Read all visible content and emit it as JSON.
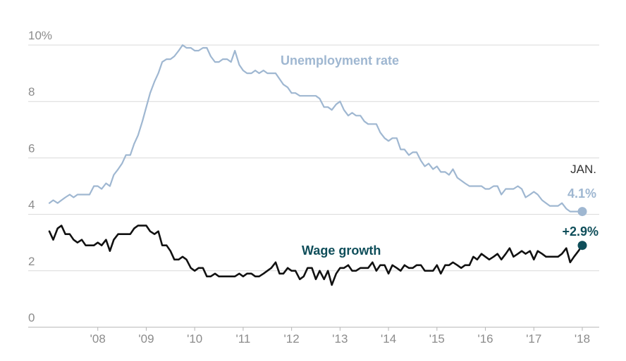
{
  "chart_data": {
    "type": "line",
    "ylim": [
      0,
      10
    ],
    "y_ticks": [
      {
        "value": 10,
        "label": "10%"
      },
      {
        "value": 8,
        "label": "8"
      },
      {
        "value": 6,
        "label": "6"
      },
      {
        "value": 4,
        "label": "4"
      },
      {
        "value": 2,
        "label": "2"
      },
      {
        "value": 0,
        "label": "0"
      }
    ],
    "x_ticks": [
      {
        "year": 2008,
        "label": "'08"
      },
      {
        "year": 2009,
        "label": "'09"
      },
      {
        "year": 2010,
        "label": "'10"
      },
      {
        "year": 2011,
        "label": "'11"
      },
      {
        "year": 2012,
        "label": "'12"
      },
      {
        "year": 2013,
        "label": "'13"
      },
      {
        "year": 2014,
        "label": "'14"
      },
      {
        "year": 2015,
        "label": "'15"
      },
      {
        "year": 2016,
        "label": "'16"
      },
      {
        "year": 2017,
        "label": "'17"
      },
      {
        "year": 2018,
        "label": "'18"
      }
    ],
    "grid": true,
    "series": [
      {
        "name": "Unemployment rate",
        "color": "#9fb7d1",
        "end_label": "4.1%",
        "points": [
          [
            2007.0,
            4.4
          ],
          [
            2007.08,
            4.5
          ],
          [
            2007.17,
            4.4
          ],
          [
            2007.25,
            4.5
          ],
          [
            2007.33,
            4.6
          ],
          [
            2007.42,
            4.7
          ],
          [
            2007.5,
            4.6
          ],
          [
            2007.58,
            4.7
          ],
          [
            2007.67,
            4.7
          ],
          [
            2007.75,
            4.7
          ],
          [
            2007.83,
            4.7
          ],
          [
            2007.92,
            5.0
          ],
          [
            2008.0,
            5.0
          ],
          [
            2008.08,
            4.9
          ],
          [
            2008.17,
            5.1
          ],
          [
            2008.25,
            5.0
          ],
          [
            2008.33,
            5.4
          ],
          [
            2008.42,
            5.6
          ],
          [
            2008.5,
            5.8
          ],
          [
            2008.58,
            6.1
          ],
          [
            2008.67,
            6.1
          ],
          [
            2008.75,
            6.5
          ],
          [
            2008.83,
            6.8
          ],
          [
            2008.92,
            7.3
          ],
          [
            2009.0,
            7.8
          ],
          [
            2009.08,
            8.3
          ],
          [
            2009.17,
            8.7
          ],
          [
            2009.25,
            9.0
          ],
          [
            2009.33,
            9.4
          ],
          [
            2009.42,
            9.5
          ],
          [
            2009.5,
            9.5
          ],
          [
            2009.58,
            9.6
          ],
          [
            2009.67,
            9.8
          ],
          [
            2009.75,
            10.0
          ],
          [
            2009.83,
            9.9
          ],
          [
            2009.92,
            9.9
          ],
          [
            2010.0,
            9.8
          ],
          [
            2010.08,
            9.8
          ],
          [
            2010.17,
            9.9
          ],
          [
            2010.25,
            9.9
          ],
          [
            2010.33,
            9.6
          ],
          [
            2010.42,
            9.4
          ],
          [
            2010.5,
            9.4
          ],
          [
            2010.58,
            9.5
          ],
          [
            2010.67,
            9.5
          ],
          [
            2010.75,
            9.4
          ],
          [
            2010.83,
            9.8
          ],
          [
            2010.92,
            9.3
          ],
          [
            2011.0,
            9.1
          ],
          [
            2011.08,
            9.0
          ],
          [
            2011.17,
            9.0
          ],
          [
            2011.25,
            9.1
          ],
          [
            2011.33,
            9.0
          ],
          [
            2011.42,
            9.1
          ],
          [
            2011.5,
            9.0
          ],
          [
            2011.58,
            9.0
          ],
          [
            2011.67,
            9.0
          ],
          [
            2011.75,
            8.8
          ],
          [
            2011.83,
            8.6
          ],
          [
            2011.92,
            8.5
          ],
          [
            2012.0,
            8.3
          ],
          [
            2012.08,
            8.3
          ],
          [
            2012.17,
            8.2
          ],
          [
            2012.25,
            8.2
          ],
          [
            2012.33,
            8.2
          ],
          [
            2012.42,
            8.2
          ],
          [
            2012.5,
            8.2
          ],
          [
            2012.58,
            8.1
          ],
          [
            2012.67,
            7.8
          ],
          [
            2012.75,
            7.8
          ],
          [
            2012.83,
            7.7
          ],
          [
            2012.92,
            7.9
          ],
          [
            2013.0,
            8.0
          ],
          [
            2013.08,
            7.7
          ],
          [
            2013.17,
            7.5
          ],
          [
            2013.25,
            7.6
          ],
          [
            2013.33,
            7.5
          ],
          [
            2013.42,
            7.5
          ],
          [
            2013.5,
            7.3
          ],
          [
            2013.58,
            7.2
          ],
          [
            2013.67,
            7.2
          ],
          [
            2013.75,
            7.2
          ],
          [
            2013.83,
            6.9
          ],
          [
            2013.92,
            6.7
          ],
          [
            2014.0,
            6.6
          ],
          [
            2014.08,
            6.7
          ],
          [
            2014.17,
            6.7
          ],
          [
            2014.25,
            6.3
          ],
          [
            2014.33,
            6.3
          ],
          [
            2014.42,
            6.1
          ],
          [
            2014.5,
            6.2
          ],
          [
            2014.58,
            6.2
          ],
          [
            2014.67,
            5.9
          ],
          [
            2014.75,
            5.7
          ],
          [
            2014.83,
            5.8
          ],
          [
            2014.92,
            5.6
          ],
          [
            2015.0,
            5.7
          ],
          [
            2015.08,
            5.5
          ],
          [
            2015.17,
            5.5
          ],
          [
            2015.25,
            5.4
          ],
          [
            2015.33,
            5.6
          ],
          [
            2015.42,
            5.3
          ],
          [
            2015.5,
            5.2
          ],
          [
            2015.58,
            5.1
          ],
          [
            2015.67,
            5.0
          ],
          [
            2015.75,
            5.0
          ],
          [
            2015.83,
            5.0
          ],
          [
            2015.92,
            5.0
          ],
          [
            2016.0,
            4.9
          ],
          [
            2016.08,
            4.9
          ],
          [
            2016.17,
            5.0
          ],
          [
            2016.25,
            5.0
          ],
          [
            2016.33,
            4.7
          ],
          [
            2016.42,
            4.9
          ],
          [
            2016.5,
            4.9
          ],
          [
            2016.58,
            4.9
          ],
          [
            2016.67,
            5.0
          ],
          [
            2016.75,
            4.9
          ],
          [
            2016.83,
            4.6
          ],
          [
            2016.92,
            4.7
          ],
          [
            2017.0,
            4.8
          ],
          [
            2017.08,
            4.7
          ],
          [
            2017.17,
            4.5
          ],
          [
            2017.25,
            4.4
          ],
          [
            2017.33,
            4.3
          ],
          [
            2017.42,
            4.3
          ],
          [
            2017.5,
            4.3
          ],
          [
            2017.58,
            4.4
          ],
          [
            2017.67,
            4.2
          ],
          [
            2017.75,
            4.1
          ],
          [
            2017.83,
            4.1
          ],
          [
            2017.92,
            4.1
          ],
          [
            2018.0,
            4.1
          ]
        ]
      },
      {
        "name": "Wage growth",
        "color": "#111111",
        "end_label": "+2.9%",
        "end_label_color": "#0f4e5a",
        "end_dot_color": "#0f4e5a",
        "points": [
          [
            2007.0,
            3.4
          ],
          [
            2007.08,
            3.1
          ],
          [
            2007.17,
            3.5
          ],
          [
            2007.25,
            3.6
          ],
          [
            2007.33,
            3.3
          ],
          [
            2007.42,
            3.3
          ],
          [
            2007.5,
            3.1
          ],
          [
            2007.58,
            3.0
          ],
          [
            2007.67,
            3.1
          ],
          [
            2007.75,
            2.9
          ],
          [
            2007.83,
            2.9
          ],
          [
            2007.92,
            2.9
          ],
          [
            2008.0,
            3.0
          ],
          [
            2008.08,
            2.9
          ],
          [
            2008.17,
            3.1
          ],
          [
            2008.25,
            2.7
          ],
          [
            2008.33,
            3.1
          ],
          [
            2008.42,
            3.3
          ],
          [
            2008.5,
            3.3
          ],
          [
            2008.58,
            3.3
          ],
          [
            2008.67,
            3.3
          ],
          [
            2008.75,
            3.5
          ],
          [
            2008.83,
            3.6
          ],
          [
            2008.92,
            3.6
          ],
          [
            2009.0,
            3.6
          ],
          [
            2009.08,
            3.4
          ],
          [
            2009.17,
            3.3
          ],
          [
            2009.25,
            3.4
          ],
          [
            2009.33,
            2.9
          ],
          [
            2009.42,
            2.9
          ],
          [
            2009.5,
            2.7
          ],
          [
            2009.58,
            2.4
          ],
          [
            2009.67,
            2.4
          ],
          [
            2009.75,
            2.5
          ],
          [
            2009.83,
            2.4
          ],
          [
            2009.92,
            2.1
          ],
          [
            2010.0,
            2.0
          ],
          [
            2010.08,
            2.1
          ],
          [
            2010.17,
            2.1
          ],
          [
            2010.25,
            1.8
          ],
          [
            2010.33,
            1.8
          ],
          [
            2010.42,
            1.9
          ],
          [
            2010.5,
            1.8
          ],
          [
            2010.58,
            1.8
          ],
          [
            2010.67,
            1.8
          ],
          [
            2010.75,
            1.8
          ],
          [
            2010.83,
            1.8
          ],
          [
            2010.92,
            1.9
          ],
          [
            2011.0,
            1.8
          ],
          [
            2011.08,
            1.9
          ],
          [
            2011.17,
            1.9
          ],
          [
            2011.25,
            1.8
          ],
          [
            2011.33,
            1.8
          ],
          [
            2011.42,
            1.9
          ],
          [
            2011.5,
            2.0
          ],
          [
            2011.58,
            2.1
          ],
          [
            2011.67,
            2.3
          ],
          [
            2011.75,
            1.9
          ],
          [
            2011.83,
            1.9
          ],
          [
            2011.92,
            2.1
          ],
          [
            2012.0,
            2.0
          ],
          [
            2012.08,
            2.0
          ],
          [
            2012.17,
            1.7
          ],
          [
            2012.25,
            1.8
          ],
          [
            2012.33,
            2.1
          ],
          [
            2012.42,
            2.1
          ],
          [
            2012.5,
            1.7
          ],
          [
            2012.58,
            2.0
          ],
          [
            2012.67,
            1.7
          ],
          [
            2012.75,
            2.0
          ],
          [
            2012.83,
            1.5
          ],
          [
            2012.92,
            1.9
          ],
          [
            2013.0,
            2.1
          ],
          [
            2013.08,
            2.1
          ],
          [
            2013.17,
            2.2
          ],
          [
            2013.25,
            2.0
          ],
          [
            2013.33,
            2.0
          ],
          [
            2013.42,
            2.1
          ],
          [
            2013.5,
            2.1
          ],
          [
            2013.58,
            2.1
          ],
          [
            2013.67,
            2.3
          ],
          [
            2013.75,
            2.0
          ],
          [
            2013.83,
            2.2
          ],
          [
            2013.92,
            2.2
          ],
          [
            2014.0,
            1.9
          ],
          [
            2014.08,
            2.2
          ],
          [
            2014.17,
            2.1
          ],
          [
            2014.25,
            2.0
          ],
          [
            2014.33,
            2.2
          ],
          [
            2014.42,
            2.1
          ],
          [
            2014.5,
            2.1
          ],
          [
            2014.58,
            2.2
          ],
          [
            2014.67,
            2.2
          ],
          [
            2014.75,
            2.0
          ],
          [
            2014.83,
            2.0
          ],
          [
            2014.92,
            2.0
          ],
          [
            2015.0,
            2.2
          ],
          [
            2015.08,
            1.9
          ],
          [
            2015.17,
            2.2
          ],
          [
            2015.25,
            2.2
          ],
          [
            2015.33,
            2.3
          ],
          [
            2015.42,
            2.2
          ],
          [
            2015.5,
            2.1
          ],
          [
            2015.58,
            2.2
          ],
          [
            2015.67,
            2.2
          ],
          [
            2015.75,
            2.5
          ],
          [
            2015.83,
            2.4
          ],
          [
            2015.92,
            2.6
          ],
          [
            2016.0,
            2.5
          ],
          [
            2016.08,
            2.4
          ],
          [
            2016.17,
            2.5
          ],
          [
            2016.25,
            2.6
          ],
          [
            2016.33,
            2.4
          ],
          [
            2016.42,
            2.6
          ],
          [
            2016.5,
            2.8
          ],
          [
            2016.58,
            2.5
          ],
          [
            2016.67,
            2.6
          ],
          [
            2016.75,
            2.7
          ],
          [
            2016.83,
            2.6
          ],
          [
            2016.92,
            2.7
          ],
          [
            2017.0,
            2.4
          ],
          [
            2017.08,
            2.7
          ],
          [
            2017.17,
            2.6
          ],
          [
            2017.25,
            2.5
          ],
          [
            2017.33,
            2.5
          ],
          [
            2017.42,
            2.5
          ],
          [
            2017.5,
            2.5
          ],
          [
            2017.58,
            2.6
          ],
          [
            2017.67,
            2.8
          ],
          [
            2017.75,
            2.3
          ],
          [
            2017.83,
            2.5
          ],
          [
            2017.92,
            2.7
          ],
          [
            2018.0,
            2.9
          ]
        ]
      }
    ],
    "annotations": {
      "month_label": "JAN."
    }
  }
}
